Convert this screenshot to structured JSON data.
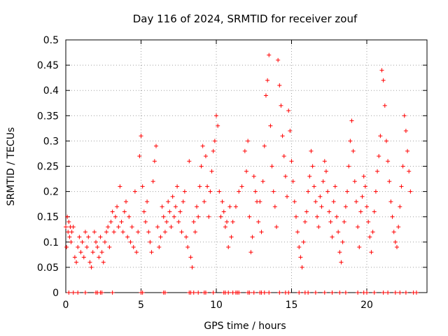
{
  "chart_data": {
    "type": "scatter",
    "title": "Day 116 of 2024, SRMTID for receiver zouf",
    "xlabel": "GPS time / hours",
    "ylabel": "SRMTID / TECUs",
    "xlim": [
      0,
      24
    ],
    "ylim": [
      0,
      0.5
    ],
    "grid": true,
    "marker": "+",
    "color": "#ff0000",
    "x_ticks": [
      {
        "value": 0,
        "label": "0"
      },
      {
        "value": 5,
        "label": "5"
      },
      {
        "value": 10,
        "label": "10"
      },
      {
        "value": 15,
        "label": "15"
      },
      {
        "value": 20,
        "label": "20"
      }
    ],
    "y_ticks": [
      {
        "value": 0,
        "label": "0"
      },
      {
        "value": 0.05,
        "label": "0.05"
      },
      {
        "value": 0.1,
        "label": "0.1"
      },
      {
        "value": 0.15,
        "label": "0.15"
      },
      {
        "value": 0.2,
        "label": "0.2"
      },
      {
        "value": 0.25,
        "label": "0.25"
      },
      {
        "value": 0.3,
        "label": "0.3"
      },
      {
        "value": 0.35,
        "label": "0.35"
      },
      {
        "value": 0.4,
        "label": "0.4"
      },
      {
        "value": 0.45,
        "label": "0.45"
      },
      {
        "value": 0.5,
        "label": "0.5"
      }
    ],
    "series": [
      {
        "name": "SRMTID",
        "points": [
          [
            0.0,
            0.13
          ],
          [
            0.05,
            0.09
          ],
          [
            0.1,
            0.15
          ],
          [
            0.15,
            0.12
          ],
          [
            0.2,
            0.14
          ],
          [
            0.25,
            0.11
          ],
          [
            0.3,
            0.13
          ],
          [
            0.35,
            0.1
          ],
          [
            0.4,
            0.12
          ],
          [
            0.5,
            0.13
          ],
          [
            0.6,
            0.07
          ],
          [
            0.7,
            0.06
          ],
          [
            0.8,
            0.09
          ],
          [
            0.9,
            0.11
          ],
          [
            1.0,
            0.08
          ],
          [
            1.1,
            0.1
          ],
          [
            1.2,
            0.07
          ],
          [
            1.3,
            0.12
          ],
          [
            1.4,
            0.09
          ],
          [
            1.5,
            0.11
          ],
          [
            1.6,
            0.06
          ],
          [
            1.7,
            0.05
          ],
          [
            1.8,
            0.08
          ],
          [
            1.9,
            0.12
          ],
          [
            2.0,
            0.1
          ],
          [
            2.1,
            0.09
          ],
          [
            2.2,
            0.07
          ],
          [
            2.3,
            0.11
          ],
          [
            2.4,
            0.08
          ],
          [
            2.5,
            0.06
          ],
          [
            2.6,
            0.1
          ],
          [
            2.7,
            0.12
          ],
          [
            2.8,
            0.13
          ],
          [
            2.9,
            0.09
          ],
          [
            3.0,
            0.14
          ],
          [
            3.1,
            0.16
          ],
          [
            3.2,
            0.12
          ],
          [
            3.3,
            0.15
          ],
          [
            3.4,
            0.17
          ],
          [
            3.5,
            0.13
          ],
          [
            3.6,
            0.21
          ],
          [
            3.7,
            0.14
          ],
          [
            3.8,
            0.12
          ],
          [
            3.9,
            0.16
          ],
          [
            4.0,
            0.18
          ],
          [
            4.1,
            0.11
          ],
          [
            4.2,
            0.15
          ],
          [
            4.3,
            0.1
          ],
          [
            4.4,
            0.13
          ],
          [
            4.5,
            0.09
          ],
          [
            4.6,
            0.2
          ],
          [
            4.7,
            0.08
          ],
          [
            4.8,
            0.12
          ],
          [
            4.9,
            0.27
          ],
          [
            5.0,
            0.31
          ],
          [
            5.1,
            0.21
          ],
          [
            5.2,
            0.16
          ],
          [
            5.3,
            0.14
          ],
          [
            5.4,
            0.18
          ],
          [
            5.5,
            0.12
          ],
          [
            5.6,
            0.1
          ],
          [
            5.7,
            0.08
          ],
          [
            5.8,
            0.22
          ],
          [
            5.9,
            0.26
          ],
          [
            6.0,
            0.29
          ],
          [
            6.1,
            0.13
          ],
          [
            6.2,
            0.09
          ],
          [
            6.3,
            0.11
          ],
          [
            6.4,
            0.17
          ],
          [
            6.5,
            0.15
          ],
          [
            6.6,
            0.12
          ],
          [
            6.7,
            0.14
          ],
          [
            6.8,
            0.18
          ],
          [
            6.9,
            0.16
          ],
          [
            7.0,
            0.13
          ],
          [
            7.1,
            0.19
          ],
          [
            7.2,
            0.15
          ],
          [
            7.3,
            0.17
          ],
          [
            7.4,
            0.21
          ],
          [
            7.5,
            0.14
          ],
          [
            7.6,
            0.16
          ],
          [
            7.7,
            0.12
          ],
          [
            7.8,
            0.18
          ],
          [
            7.9,
            0.2
          ],
          [
            8.0,
            0.11
          ],
          [
            8.1,
            0.09
          ],
          [
            8.2,
            0.26
          ],
          [
            8.3,
            0.07
          ],
          [
            8.4,
            0.05
          ],
          [
            8.5,
            0.14
          ],
          [
            8.6,
            0.12
          ],
          [
            8.7,
            0.17
          ],
          [
            8.8,
            0.15
          ],
          [
            8.9,
            0.21
          ],
          [
            9.0,
            0.25
          ],
          [
            9.1,
            0.29
          ],
          [
            9.2,
            0.18
          ],
          [
            9.3,
            0.27
          ],
          [
            9.4,
            0.21
          ],
          [
            9.5,
            0.15
          ],
          [
            9.6,
            0.2
          ],
          [
            9.7,
            0.24
          ],
          [
            9.8,
            0.28
          ],
          [
            9.9,
            0.3
          ],
          [
            10.0,
            0.35
          ],
          [
            10.1,
            0.33
          ],
          [
            10.2,
            0.2
          ],
          [
            10.3,
            0.15
          ],
          [
            10.4,
            0.18
          ],
          [
            10.5,
            0.16
          ],
          [
            10.6,
            0.13
          ],
          [
            10.7,
            0.14
          ],
          [
            10.8,
            0.09
          ],
          [
            10.9,
            0.17
          ],
          [
            11.0,
            0.11
          ],
          [
            11.1,
            0.14
          ],
          [
            11.3,
            0.17
          ],
          [
            11.5,
            0.2
          ],
          [
            11.7,
            0.21
          ],
          [
            11.9,
            0.28
          ],
          [
            12.0,
            0.24
          ],
          [
            12.1,
            0.3
          ],
          [
            12.2,
            0.15
          ],
          [
            12.3,
            0.08
          ],
          [
            12.4,
            0.11
          ],
          [
            12.5,
            0.23
          ],
          [
            12.6,
            0.2
          ],
          [
            12.7,
            0.18
          ],
          [
            12.8,
            0.14
          ],
          [
            12.9,
            0.18
          ],
          [
            13.0,
            0.12
          ],
          [
            13.1,
            0.22
          ],
          [
            13.2,
            0.29
          ],
          [
            13.3,
            0.39
          ],
          [
            13.4,
            0.42
          ],
          [
            13.5,
            0.47
          ],
          [
            13.6,
            0.33
          ],
          [
            13.7,
            0.25
          ],
          [
            13.8,
            0.2
          ],
          [
            13.9,
            0.17
          ],
          [
            14.0,
            0.13
          ],
          [
            14.1,
            0.46
          ],
          [
            14.2,
            0.41
          ],
          [
            14.3,
            0.37
          ],
          [
            14.4,
            0.31
          ],
          [
            14.5,
            0.27
          ],
          [
            14.6,
            0.23
          ],
          [
            14.7,
            0.19
          ],
          [
            14.8,
            0.36
          ],
          [
            14.9,
            0.32
          ],
          [
            15.0,
            0.26
          ],
          [
            15.1,
            0.22
          ],
          [
            15.2,
            0.18
          ],
          [
            15.3,
            0.15
          ],
          [
            15.4,
            0.12
          ],
          [
            15.5,
            0.09
          ],
          [
            15.6,
            0.07
          ],
          [
            15.7,
            0.05
          ],
          [
            15.8,
            0.1
          ],
          [
            15.9,
            0.14
          ],
          [
            16.0,
            0.16
          ],
          [
            16.1,
            0.2
          ],
          [
            16.2,
            0.23
          ],
          [
            16.3,
            0.28
          ],
          [
            16.4,
            0.25
          ],
          [
            16.5,
            0.21
          ],
          [
            16.6,
            0.18
          ],
          [
            16.7,
            0.15
          ],
          [
            16.8,
            0.13
          ],
          [
            16.9,
            0.19
          ],
          [
            17.0,
            0.17
          ],
          [
            17.1,
            0.22
          ],
          [
            17.2,
            0.26
          ],
          [
            17.3,
            0.24
          ],
          [
            17.4,
            0.2
          ],
          [
            17.5,
            0.16
          ],
          [
            17.6,
            0.14
          ],
          [
            17.7,
            0.11
          ],
          [
            17.8,
            0.18
          ],
          [
            17.9,
            0.21
          ],
          [
            18.0,
            0.15
          ],
          [
            18.1,
            0.12
          ],
          [
            18.2,
            0.08
          ],
          [
            18.3,
            0.06
          ],
          [
            18.4,
            0.1
          ],
          [
            18.5,
            0.14
          ],
          [
            18.6,
            0.17
          ],
          [
            18.7,
            0.2
          ],
          [
            18.8,
            0.25
          ],
          [
            18.9,
            0.3
          ],
          [
            19.0,
            0.34
          ],
          [
            19.1,
            0.28
          ],
          [
            19.2,
            0.22
          ],
          [
            19.3,
            0.18
          ],
          [
            19.4,
            0.13
          ],
          [
            19.5,
            0.09
          ],
          [
            19.6,
            0.16
          ],
          [
            19.7,
            0.19
          ],
          [
            19.8,
            0.23
          ],
          [
            19.9,
            0.21
          ],
          [
            20.0,
            0.17
          ],
          [
            20.1,
            0.14
          ],
          [
            20.2,
            0.11
          ],
          [
            20.3,
            0.08
          ],
          [
            20.4,
            0.12
          ],
          [
            20.5,
            0.16
          ],
          [
            20.6,
            0.2
          ],
          [
            20.7,
            0.24
          ],
          [
            20.8,
            0.27
          ],
          [
            20.9,
            0.31
          ],
          [
            21.0,
            0.44
          ],
          [
            21.1,
            0.42
          ],
          [
            21.2,
            0.37
          ],
          [
            21.3,
            0.3
          ],
          [
            21.4,
            0.26
          ],
          [
            21.5,
            0.22
          ],
          [
            21.6,
            0.18
          ],
          [
            21.7,
            0.15
          ],
          [
            21.8,
            0.12
          ],
          [
            21.9,
            0.1
          ],
          [
            22.0,
            0.09
          ],
          [
            22.1,
            0.13
          ],
          [
            22.2,
            0.17
          ],
          [
            22.3,
            0.21
          ],
          [
            22.4,
            0.25
          ],
          [
            22.5,
            0.35
          ],
          [
            22.6,
            0.32
          ],
          [
            22.7,
            0.28
          ],
          [
            22.8,
            0.24
          ],
          [
            22.9,
            0.2
          ]
        ]
      }
    ],
    "zero_points_x": [
      0.2,
      0.5,
      0.8,
      1.3,
      2.0,
      2.1,
      2.3,
      2.4,
      3.1,
      5.0,
      5.1,
      6.5,
      6.6,
      8.2,
      8.3,
      8.5,
      8.8,
      9.2,
      9.3,
      9.8,
      10.5,
      10.6,
      10.8,
      11.1,
      11.3,
      11.4,
      11.5,
      12.1,
      12.2,
      12.5,
      12.9,
      13.0,
      13.2,
      13.5,
      14.2,
      14.6,
      14.8,
      15.5,
      15.9,
      16.1,
      16.6,
      17.2,
      17.7,
      18.2,
      18.6,
      19.4,
      19.8,
      20.0,
      20.5,
      21.1,
      21.4,
      21.9,
      22.2,
      22.6,
      23.1,
      23.3
    ]
  }
}
